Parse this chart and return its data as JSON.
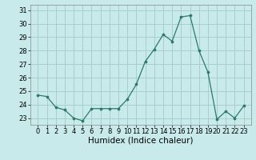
{
  "x": [
    0,
    1,
    2,
    3,
    4,
    5,
    6,
    7,
    8,
    9,
    10,
    11,
    12,
    13,
    14,
    15,
    16,
    17,
    18,
    19,
    20,
    21,
    22,
    23
  ],
  "y": [
    24.7,
    24.6,
    23.8,
    23.6,
    23.0,
    22.8,
    23.7,
    23.7,
    23.7,
    23.7,
    24.4,
    25.5,
    27.2,
    28.1,
    29.2,
    28.7,
    30.5,
    30.6,
    28.0,
    26.4,
    22.9,
    23.5,
    23.0,
    23.9
  ],
  "title": "",
  "xlabel": "Humidex (Indice chaleur)",
  "ylabel": "",
  "ylim": [
    22.5,
    31.4
  ],
  "yticks": [
    23,
    24,
    25,
    26,
    27,
    28,
    29,
    30,
    31
  ],
  "xticks": [
    0,
    1,
    2,
    3,
    4,
    5,
    6,
    7,
    8,
    9,
    10,
    11,
    12,
    13,
    14,
    15,
    16,
    17,
    18,
    19,
    20,
    21,
    22,
    23
  ],
  "xtick_labels": [
    "0",
    "1",
    "2",
    "3",
    "4",
    "5",
    "6",
    "7",
    "8",
    "9",
    "10",
    "11",
    "12",
    "13",
    "14",
    "15",
    "16",
    "17",
    "18",
    "19",
    "20",
    "21",
    "22",
    "23"
  ],
  "line_color": "#2d7a6a",
  "marker": "o",
  "marker_size": 2.2,
  "bg_color": "#c8eaea",
  "grid_color": "#a8cece",
  "axes_bg": "#c8eaea",
  "tick_fontsize": 6.0,
  "xlabel_fontsize": 7.5
}
